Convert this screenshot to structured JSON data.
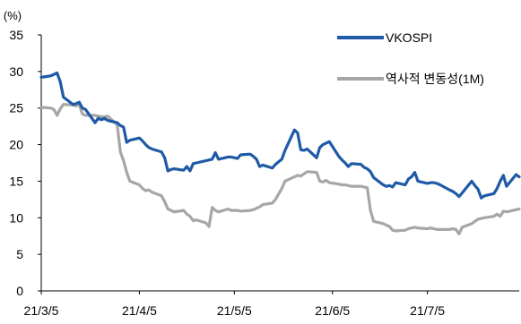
{
  "chart_data": {
    "type": "line",
    "title": "",
    "unit_label": "(%)",
    "ylim": [
      0,
      35
    ],
    "y_ticks": [
      0,
      5,
      10,
      15,
      20,
      25,
      30,
      35
    ],
    "x_range": [
      "2021-03-05",
      "2021-08-03"
    ],
    "x_ticks": [
      {
        "date": "2021-03-05",
        "label": "21/3/5"
      },
      {
        "date": "2021-04-05",
        "label": "21/4/5"
      },
      {
        "date": "2021-05-05",
        "label": "21/5/5"
      },
      {
        "date": "2021-06-05",
        "label": "21/6/5"
      },
      {
        "date": "2021-07-05",
        "label": "21/7/5"
      }
    ],
    "grid": false,
    "legend_position": "top-right",
    "series": [
      {
        "name": "VKOSPI",
        "color": "#1F5AA6",
        "points": [
          [
            "2021-03-05",
            29.2
          ],
          [
            "2021-03-08",
            29.4
          ],
          [
            "2021-03-09",
            29.6
          ],
          [
            "2021-03-10",
            29.8
          ],
          [
            "2021-03-11",
            28.6
          ],
          [
            "2021-03-12",
            26.5
          ],
          [
            "2021-03-15",
            25.5
          ],
          [
            "2021-03-16",
            25.6
          ],
          [
            "2021-03-17",
            25.8
          ],
          [
            "2021-03-18",
            25.0
          ],
          [
            "2021-03-19",
            24.8
          ],
          [
            "2021-03-22",
            23.0
          ],
          [
            "2021-03-23",
            23.6
          ],
          [
            "2021-03-24",
            23.4
          ],
          [
            "2021-03-25",
            23.6
          ],
          [
            "2021-03-26",
            23.3
          ],
          [
            "2021-03-29",
            23.0
          ],
          [
            "2021-03-30",
            22.6
          ],
          [
            "2021-03-31",
            22.4
          ],
          [
            "2021-04-01",
            20.3
          ],
          [
            "2021-04-02",
            20.6
          ],
          [
            "2021-04-05",
            20.9
          ],
          [
            "2021-04-06",
            20.5
          ],
          [
            "2021-04-07",
            20.0
          ],
          [
            "2021-04-08",
            19.6
          ],
          [
            "2021-04-09",
            19.4
          ],
          [
            "2021-04-12",
            19.0
          ],
          [
            "2021-04-13",
            18.2
          ],
          [
            "2021-04-14",
            16.4
          ],
          [
            "2021-04-15",
            16.6
          ],
          [
            "2021-04-16",
            16.7
          ],
          [
            "2021-04-19",
            16.5
          ],
          [
            "2021-04-20",
            17.0
          ],
          [
            "2021-04-21",
            16.4
          ],
          [
            "2021-04-22",
            17.4
          ],
          [
            "2021-04-23",
            17.5
          ],
          [
            "2021-04-26",
            17.8
          ],
          [
            "2021-04-27",
            17.9
          ],
          [
            "2021-04-28",
            18.0
          ],
          [
            "2021-04-29",
            18.9
          ],
          [
            "2021-04-30",
            18.0
          ],
          [
            "2021-05-03",
            18.3
          ],
          [
            "2021-05-04",
            18.3
          ],
          [
            "2021-05-06",
            18.1
          ],
          [
            "2021-05-07",
            18.6
          ],
          [
            "2021-05-10",
            18.7
          ],
          [
            "2021-05-11",
            18.4
          ],
          [
            "2021-05-12",
            18.0
          ],
          [
            "2021-05-13",
            17.0
          ],
          [
            "2021-05-14",
            17.2
          ],
          [
            "2021-05-17",
            16.8
          ],
          [
            "2021-05-18",
            17.3
          ],
          [
            "2021-05-20",
            18.0
          ],
          [
            "2021-05-21",
            19.2
          ],
          [
            "2021-05-24",
            22.0
          ],
          [
            "2021-05-25",
            21.6
          ],
          [
            "2021-05-26",
            19.3
          ],
          [
            "2021-05-27",
            19.2
          ],
          [
            "2021-05-28",
            19.4
          ],
          [
            "2021-05-31",
            18.2
          ],
          [
            "2021-06-01",
            19.6
          ],
          [
            "2021-06-02",
            20.0
          ],
          [
            "2021-06-03",
            20.2
          ],
          [
            "2021-06-04",
            20.4
          ],
          [
            "2021-06-07",
            18.4
          ],
          [
            "2021-06-08",
            17.9
          ],
          [
            "2021-06-09",
            17.5
          ],
          [
            "2021-06-10",
            17.0
          ],
          [
            "2021-06-11",
            17.4
          ],
          [
            "2021-06-14",
            17.3
          ],
          [
            "2021-06-15",
            16.9
          ],
          [
            "2021-06-16",
            16.7
          ],
          [
            "2021-06-17",
            16.3
          ],
          [
            "2021-06-18",
            15.5
          ],
          [
            "2021-06-21",
            14.5
          ],
          [
            "2021-06-22",
            14.3
          ],
          [
            "2021-06-23",
            14.4
          ],
          [
            "2021-06-24",
            14.2
          ],
          [
            "2021-06-25",
            14.8
          ],
          [
            "2021-06-28",
            14.5
          ],
          [
            "2021-06-29",
            15.3
          ],
          [
            "2021-06-30",
            15.6
          ],
          [
            "2021-07-01",
            16.2
          ],
          [
            "2021-07-02",
            15.0
          ],
          [
            "2021-07-05",
            14.7
          ],
          [
            "2021-07-06",
            14.8
          ],
          [
            "2021-07-07",
            14.8
          ],
          [
            "2021-07-08",
            14.7
          ],
          [
            "2021-07-09",
            14.5
          ],
          [
            "2021-07-12",
            13.8
          ],
          [
            "2021-07-13",
            13.6
          ],
          [
            "2021-07-14",
            13.3
          ],
          [
            "2021-07-15",
            12.9
          ],
          [
            "2021-07-16",
            13.4
          ],
          [
            "2021-07-19",
            15.0
          ],
          [
            "2021-07-20",
            14.4
          ],
          [
            "2021-07-21",
            13.9
          ],
          [
            "2021-07-22",
            12.7
          ],
          [
            "2021-07-23",
            13.0
          ],
          [
            "2021-07-26",
            13.3
          ],
          [
            "2021-07-27",
            14.0
          ],
          [
            "2021-07-28",
            15.0
          ],
          [
            "2021-07-29",
            15.8
          ],
          [
            "2021-07-30",
            14.3
          ],
          [
            "2021-08-02",
            15.9
          ],
          [
            "2021-08-03",
            15.6
          ]
        ]
      },
      {
        "name": "역사적 변동성(1M)",
        "color": "#A6A6A6",
        "points": [
          [
            "2021-03-05",
            25.1
          ],
          [
            "2021-03-08",
            25.0
          ],
          [
            "2021-03-09",
            24.8
          ],
          [
            "2021-03-10",
            24.0
          ],
          [
            "2021-03-11",
            24.9
          ],
          [
            "2021-03-12",
            25.5
          ],
          [
            "2021-03-15",
            25.4
          ],
          [
            "2021-03-16",
            25.3
          ],
          [
            "2021-03-17",
            25.5
          ],
          [
            "2021-03-18",
            24.2
          ],
          [
            "2021-03-19",
            24.0
          ],
          [
            "2021-03-22",
            24.0
          ],
          [
            "2021-03-23",
            23.9
          ],
          [
            "2021-03-24",
            23.8
          ],
          [
            "2021-03-25",
            23.8
          ],
          [
            "2021-03-26",
            23.9
          ],
          [
            "2021-03-29",
            22.7
          ],
          [
            "2021-03-30",
            19.0
          ],
          [
            "2021-03-31",
            17.8
          ],
          [
            "2021-04-01",
            16.2
          ],
          [
            "2021-04-02",
            15.0
          ],
          [
            "2021-04-05",
            14.5
          ],
          [
            "2021-04-06",
            14.0
          ],
          [
            "2021-04-07",
            13.7
          ],
          [
            "2021-04-08",
            13.8
          ],
          [
            "2021-04-09",
            13.5
          ],
          [
            "2021-04-12",
            13.0
          ],
          [
            "2021-04-13",
            12.2
          ],
          [
            "2021-04-14",
            11.2
          ],
          [
            "2021-04-15",
            11.0
          ],
          [
            "2021-04-16",
            10.8
          ],
          [
            "2021-04-19",
            11.0
          ],
          [
            "2021-04-20",
            10.5
          ],
          [
            "2021-04-21",
            10.2
          ],
          [
            "2021-04-22",
            9.6
          ],
          [
            "2021-04-23",
            9.7
          ],
          [
            "2021-04-26",
            9.3
          ],
          [
            "2021-04-27",
            8.8
          ],
          [
            "2021-04-28",
            11.4
          ],
          [
            "2021-04-29",
            11.0
          ],
          [
            "2021-04-30",
            10.8
          ],
          [
            "2021-05-03",
            11.2
          ],
          [
            "2021-05-04",
            11.0
          ],
          [
            "2021-05-06",
            11.0
          ],
          [
            "2021-05-07",
            10.9
          ],
          [
            "2021-05-10",
            11.0
          ],
          [
            "2021-05-11",
            11.1
          ],
          [
            "2021-05-12",
            11.3
          ],
          [
            "2021-05-13",
            11.5
          ],
          [
            "2021-05-14",
            11.8
          ],
          [
            "2021-05-17",
            12.0
          ],
          [
            "2021-05-18",
            12.5
          ],
          [
            "2021-05-20",
            14.0
          ],
          [
            "2021-05-21",
            15.0
          ],
          [
            "2021-05-24",
            15.6
          ],
          [
            "2021-05-25",
            15.8
          ],
          [
            "2021-05-26",
            15.7
          ],
          [
            "2021-05-27",
            16.0
          ],
          [
            "2021-05-28",
            16.3
          ],
          [
            "2021-05-31",
            16.2
          ],
          [
            "2021-06-01",
            15.0
          ],
          [
            "2021-06-02",
            14.9
          ],
          [
            "2021-06-03",
            15.1
          ],
          [
            "2021-06-04",
            14.8
          ],
          [
            "2021-06-07",
            14.6
          ],
          [
            "2021-06-08",
            14.5
          ],
          [
            "2021-06-09",
            14.5
          ],
          [
            "2021-06-10",
            14.4
          ],
          [
            "2021-06-11",
            14.3
          ],
          [
            "2021-06-14",
            14.3
          ],
          [
            "2021-06-15",
            14.2
          ],
          [
            "2021-06-16",
            14.1
          ],
          [
            "2021-06-17",
            11.0
          ],
          [
            "2021-06-18",
            9.5
          ],
          [
            "2021-06-21",
            9.2
          ],
          [
            "2021-06-22",
            9.0
          ],
          [
            "2021-06-23",
            8.8
          ],
          [
            "2021-06-24",
            8.3
          ],
          [
            "2021-06-25",
            8.2
          ],
          [
            "2021-06-28",
            8.3
          ],
          [
            "2021-06-29",
            8.5
          ],
          [
            "2021-06-30",
            8.6
          ],
          [
            "2021-07-01",
            8.7
          ],
          [
            "2021-07-02",
            8.6
          ],
          [
            "2021-07-05",
            8.5
          ],
          [
            "2021-07-06",
            8.6
          ],
          [
            "2021-07-07",
            8.5
          ],
          [
            "2021-07-08",
            8.4
          ],
          [
            "2021-07-09",
            8.4
          ],
          [
            "2021-07-12",
            8.4
          ],
          [
            "2021-07-13",
            8.5
          ],
          [
            "2021-07-14",
            8.4
          ],
          [
            "2021-07-15",
            7.8
          ],
          [
            "2021-07-16",
            8.7
          ],
          [
            "2021-07-19",
            9.2
          ],
          [
            "2021-07-20",
            9.5
          ],
          [
            "2021-07-21",
            9.8
          ],
          [
            "2021-07-22",
            9.9
          ],
          [
            "2021-07-23",
            10.0
          ],
          [
            "2021-07-26",
            10.2
          ],
          [
            "2021-07-27",
            10.5
          ],
          [
            "2021-07-28",
            10.2
          ],
          [
            "2021-07-29",
            10.9
          ],
          [
            "2021-07-30",
            10.8
          ],
          [
            "2021-08-02",
            11.1
          ],
          [
            "2021-08-03",
            11.2
          ]
        ]
      }
    ]
  }
}
